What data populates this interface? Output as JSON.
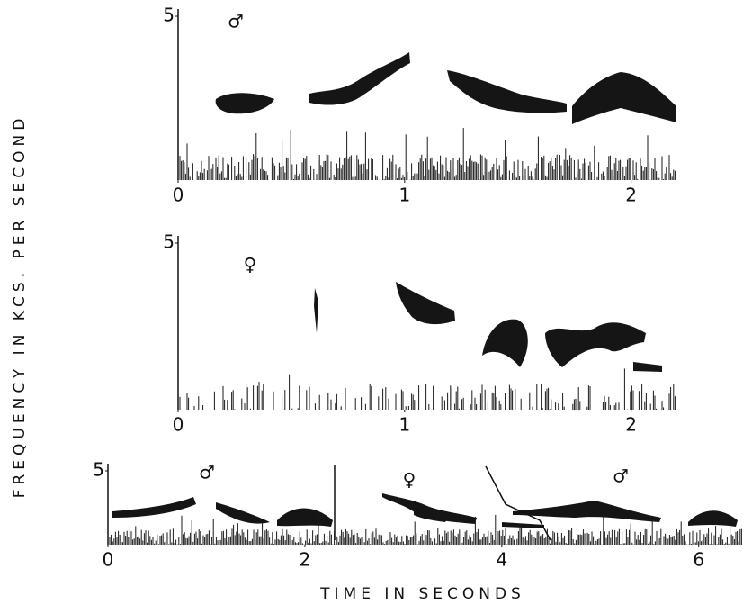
{
  "y_axis_label": "FREQUENCY IN KCS. PER SECOND",
  "x_axis_label": "TIME IN SECONDS",
  "chart_data": [
    {
      "type": "spectrogram",
      "annotations": [
        "♂"
      ],
      "xlim": [
        0,
        2.2
      ],
      "ylim": [
        0,
        5
      ],
      "xticks": [
        0,
        1,
        2
      ],
      "yticks": [
        5
      ]
    },
    {
      "type": "spectrogram",
      "annotations": [
        "♀"
      ],
      "xlim": [
        0,
        2.2
      ],
      "ylim": [
        0,
        5
      ],
      "xticks": [
        0,
        1,
        2
      ],
      "yticks": [
        5
      ]
    },
    {
      "type": "spectrogram",
      "annotations": [
        "♂",
        "♀",
        "♂"
      ],
      "xlim": [
        0,
        6.45
      ],
      "ylim": [
        0,
        5
      ],
      "xticks": [
        0,
        2,
        4,
        6
      ],
      "yticks": [
        5
      ]
    }
  ]
}
